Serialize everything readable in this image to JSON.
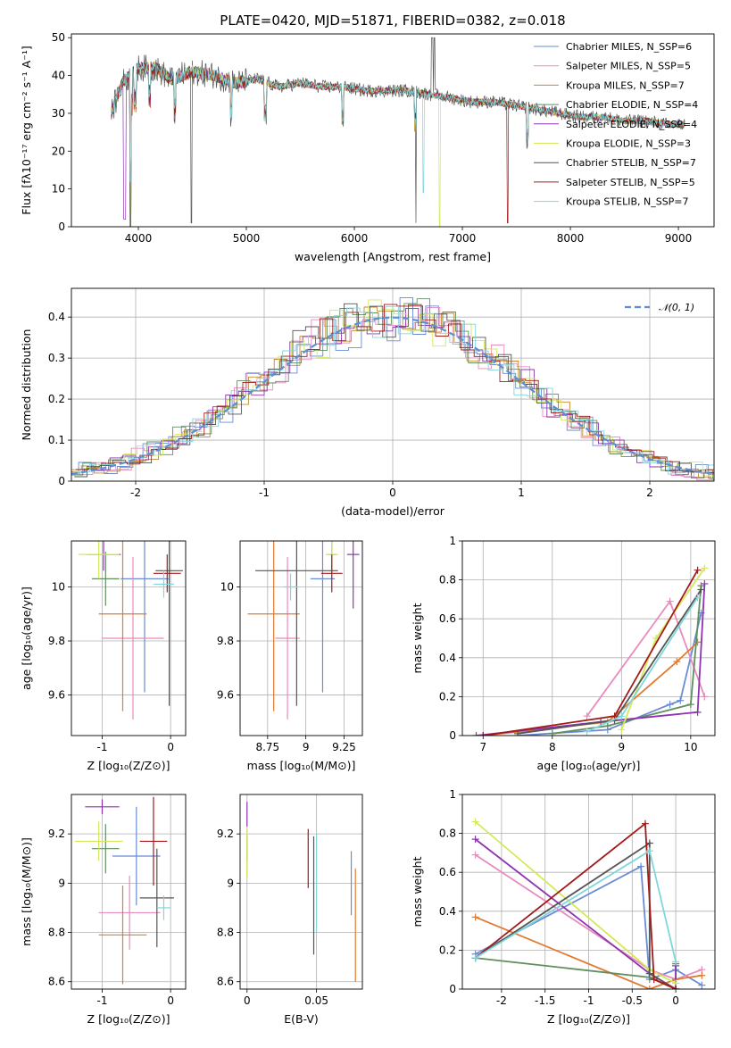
{
  "figure": {
    "title": "PLATE=0420, MJD=51871, FIBERID=0382, z=0.018"
  },
  "chart_data": [
    {
      "id": "spectrum",
      "type": "line",
      "xlabel": "wavelength [Angstrom, rest frame]",
      "ylabel": "Flux [fλ10⁻¹⁷ erg cm⁻² s⁻¹ A⁻¹]",
      "xlim": [
        3380,
        9330
      ],
      "ylim": [
        0,
        51
      ],
      "xticks": [
        4000,
        5000,
        6000,
        7000,
        8000,
        9000
      ],
      "yticks": [
        0,
        10,
        20,
        30,
        40,
        50
      ],
      "legend_position": "top-right",
      "x": [
        3750,
        3850,
        4000,
        4150,
        4300,
        4500,
        4700,
        4900,
        5100,
        5300,
        5500,
        5700,
        5900,
        6100,
        6300,
        6500,
        6700,
        6900,
        7100,
        7300,
        7500,
        7700,
        7900,
        8100,
        8300,
        8500,
        8700,
        8900,
        9060
      ],
      "series_shared_y": [
        30,
        38,
        42,
        42,
        39,
        41,
        40,
        38,
        39,
        37,
        38,
        37,
        37,
        36,
        36,
        36,
        35,
        34,
        33,
        33,
        32,
        31,
        30,
        29,
        29,
        28,
        28,
        27,
        27
      ],
      "series": [
        {
          "name": "Chabrier MILES, N_SSP=6",
          "color": "#6a8bd6"
        },
        {
          "name": "Salpeter MILES, N_SSP=5",
          "color": "#e88bbd"
        },
        {
          "name": "Kroupa MILES, N_SSP=7",
          "color": "#c8862a"
        },
        {
          "name": "Chabrier ELODIE, N_SSP=4",
          "color": "#5f8f5f"
        },
        {
          "name": "Salpeter ELODIE, N_SSP=4",
          "color": "#8e33b0"
        },
        {
          "name": "Kroupa ELODIE, N_SSP=3",
          "color": "#d4e85a"
        },
        {
          "name": "Chabrier STELIB, N_SSP=7",
          "color": "#555555"
        },
        {
          "name": "Salpeter STELIB, N_SSP=5",
          "color": "#a31a1a"
        },
        {
          "name": "Kroupa STELIB, N_SSP=7",
          "color": "#7fd6dc"
        }
      ]
    },
    {
      "id": "residuals",
      "type": "line",
      "xlabel": "(data-model)/error",
      "ylabel": "Normed distribution",
      "xlim": [
        -2.5,
        2.5
      ],
      "ylim": [
        0,
        0.47
      ],
      "xticks": [
        -2,
        -1,
        0,
        1,
        2
      ],
      "yticks": [
        0.0,
        0.1,
        0.2,
        0.3,
        0.4
      ],
      "grid": true,
      "legend": "𝒩(0, 1)",
      "legend_position": "top-right",
      "bin_width": 0.1,
      "gaussian_color": "#5b8fd6"
    },
    {
      "id": "age_vs_Z",
      "type": "scatter",
      "xlabel": "Z [log₁₀(Z/Z⊙)]",
      "ylabel": "age  [log₁₀(age/yr)]",
      "xlim": [
        -1.45,
        0.22
      ],
      "ylim": [
        9.45,
        10.17
      ],
      "xticks": [
        -1,
        0
      ],
      "yticks": [
        9.6,
        9.8,
        10.0
      ],
      "grid": true,
      "points": [
        {
          "x": -0.38,
          "y": 10.03,
          "xerr": 0.35,
          "yerr": 0.42,
          "color": "#6a8bd6"
        },
        {
          "x": -0.55,
          "y": 9.81,
          "xerr": 0.45,
          "yerr": 0.3,
          "color": "#e88bbd"
        },
        {
          "x": -0.7,
          "y": 9.9,
          "xerr": 0.35,
          "yerr": 0.36,
          "color": "#e07b30"
        },
        {
          "x": -0.95,
          "y": 10.03,
          "xerr": 0.2,
          "yerr": 0.1,
          "color": "#5f8f5f"
        },
        {
          "x": -0.98,
          "y": 10.12,
          "xerr": 0.25,
          "yerr": 0.06,
          "color": "#8e33b0"
        },
        {
          "x": -1.05,
          "y": 10.12,
          "xerr": 0.3,
          "yerr": 0.09,
          "color": "#d4e85a"
        },
        {
          "x": -0.02,
          "y": 10.06,
          "xerr": 0.2,
          "yerr": 0.5,
          "color": "#555555"
        },
        {
          "x": -0.05,
          "y": 10.05,
          "xerr": 0.2,
          "yerr": 0.07,
          "color": "#a31a1a"
        },
        {
          "x": -0.1,
          "y": 10.01,
          "xerr": 0.15,
          "yerr": 0.05,
          "color": "#7fd6dc"
        }
      ]
    },
    {
      "id": "age_vs_mass",
      "type": "scatter",
      "xlabel": "mass [log₁₀(M/M⊙)]",
      "ylabel": "",
      "xlim": [
        8.57,
        9.37
      ],
      "ylim": [
        9.45,
        10.17
      ],
      "xticks": [
        8.75,
        9.0,
        9.25
      ],
      "yticks": [
        9.6,
        9.8,
        10.0
      ],
      "grid": true,
      "points": [
        {
          "x": 9.11,
          "y": 10.03,
          "xerr": 0.08,
          "yerr": 0.42,
          "color": "#6a8bd6"
        },
        {
          "x": 8.88,
          "y": 9.81,
          "xerr": 0.08,
          "yerr": 0.3,
          "color": "#e88bbd"
        },
        {
          "x": 8.79,
          "y": 9.9,
          "xerr": 0.17,
          "yerr": 0.36,
          "color": "#e07b30"
        },
        {
          "x": 9.17,
          "y": 10.12,
          "xerr": 0.03,
          "yerr": 0.06,
          "color": "#5f8f5f"
        },
        {
          "x": 9.31,
          "y": 10.12,
          "xerr": 0.04,
          "yerr": 0.2,
          "color": "#8e33b0"
        },
        {
          "x": 9.17,
          "y": 10.12,
          "xerr": 0.04,
          "yerr": 0.09,
          "color": "#d4e85a"
        },
        {
          "x": 8.94,
          "y": 10.06,
          "xerr": 0.27,
          "yerr": 0.5,
          "color": "#555555"
        },
        {
          "x": 9.17,
          "y": 10.05,
          "xerr": 0.07,
          "yerr": 0.07,
          "color": "#a31a1a"
        },
        {
          "x": 8.9,
          "y": 10.0,
          "xerr": 0.05,
          "yerr": 0.05,
          "color": "#7fd6dc"
        }
      ]
    },
    {
      "id": "weight_vs_age",
      "type": "line",
      "xlabel": "age  [log₁₀(age/yr)]",
      "ylabel": "mass weight",
      "xlim": [
        6.7,
        10.35
      ],
      "ylim": [
        0,
        1
      ],
      "xticks": [
        7,
        8,
        9,
        10
      ],
      "yticks": [
        0.0,
        0.2,
        0.4,
        0.6,
        0.8,
        1.0
      ],
      "grid": true,
      "series": [
        {
          "color": "#6a8bd6",
          "points": [
            [
              7.5,
              0.0
            ],
            [
              8.8,
              0.03
            ],
            [
              9.7,
              0.16
            ],
            [
              9.85,
              0.18
            ],
            [
              10.15,
              0.63
            ]
          ]
        },
        {
          "color": "#e88bbd",
          "points": [
            [
              8.5,
              0.1
            ],
            [
              9.7,
              0.69
            ],
            [
              10.2,
              0.2
            ]
          ]
        },
        {
          "color": "#e07b30",
          "points": [
            [
              7.0,
              0.0
            ],
            [
              8.8,
              0.07
            ],
            [
              9.8,
              0.38
            ],
            [
              10.1,
              0.48
            ]
          ]
        },
        {
          "color": "#5f8f5f",
          "points": [
            [
              8.0,
              0.01
            ],
            [
              8.8,
              0.05
            ],
            [
              10.0,
              0.16
            ],
            [
              10.15,
              0.77
            ]
          ]
        },
        {
          "color": "#8e33b0",
          "points": [
            [
              6.9,
              0.0
            ],
            [
              8.7,
              0.07
            ],
            [
              10.1,
              0.12
            ],
            [
              10.2,
              0.78
            ]
          ]
        },
        {
          "color": "#d4e85a",
          "points": [
            [
              9.0,
              0.03
            ],
            [
              9.5,
              0.5
            ],
            [
              10.2,
              0.86
            ]
          ]
        },
        {
          "color": "#555555",
          "points": [
            [
              7.5,
              0.01
            ],
            [
              8.9,
              0.08
            ],
            [
              10.15,
              0.75
            ]
          ]
        },
        {
          "color": "#a31a1a",
          "points": [
            [
              7.0,
              0.0
            ],
            [
              8.9,
              0.1
            ],
            [
              10.1,
              0.85
            ]
          ]
        },
        {
          "color": "#7fd6dc",
          "points": [
            [
              8.5,
              0.02
            ],
            [
              9.0,
              0.1
            ],
            [
              10.1,
              0.71
            ]
          ]
        }
      ]
    },
    {
      "id": "mass_vs_Z",
      "type": "scatter",
      "xlabel": "Z [log₁₀(Z/Z⊙)]",
      "ylabel": "mass [log₁₀(M/M⊙)]",
      "xlim": [
        -1.45,
        0.22
      ],
      "ylim": [
        8.57,
        9.36
      ],
      "xticks": [
        -1,
        0
      ],
      "yticks": [
        8.6,
        8.8,
        9.0,
        9.2
      ],
      "grid": true,
      "points": [
        {
          "x": -0.5,
          "y": 9.11,
          "xerr": 0.35,
          "yerr": 0.2,
          "color": "#6a8bd6"
        },
        {
          "x": -0.6,
          "y": 8.88,
          "xerr": 0.45,
          "yerr": 0.15,
          "color": "#e88bbd"
        },
        {
          "x": -0.7,
          "y": 8.79,
          "xerr": 0.35,
          "yerr": 0.2,
          "color": "#e07b30"
        },
        {
          "x": -0.95,
          "y": 9.14,
          "xerr": 0.2,
          "yerr": 0.1,
          "color": "#5f8f5f"
        },
        {
          "x": -1.0,
          "y": 9.31,
          "xerr": 0.25,
          "yerr": 0.03,
          "color": "#8e33b0"
        },
        {
          "x": -1.05,
          "y": 9.17,
          "xerr": 0.35,
          "yerr": 0.08,
          "color": "#d4e85a"
        },
        {
          "x": -0.2,
          "y": 8.94,
          "xerr": 0.25,
          "yerr": 0.2,
          "color": "#555555"
        },
        {
          "x": -0.25,
          "y": 9.17,
          "xerr": 0.2,
          "yerr": 0.18,
          "color": "#a31a1a"
        },
        {
          "x": -0.1,
          "y": 8.9,
          "xerr": 0.1,
          "yerr": 0.05,
          "color": "#7fd6dc"
        }
      ]
    },
    {
      "id": "mass_vs_ebv",
      "type": "scatter",
      "xlabel": "E(B-V)",
      "ylabel": "",
      "xlim": [
        -0.005,
        0.083
      ],
      "ylim": [
        8.57,
        9.36
      ],
      "xticks": [
        0.0,
        0.05
      ],
      "yticks": [
        8.6,
        8.8,
        9.0,
        9.2
      ],
      "grid": true,
      "points": [
        {
          "x": 0.075,
          "y": 9.0,
          "xerr": 0,
          "yerr": 0.13,
          "color": "#6a8bd6"
        },
        {
          "x": 0.0,
          "y": 9.12,
          "xerr": 0,
          "yerr": 0.1,
          "color": "#e88bbd"
        },
        {
          "x": 0.078,
          "y": 8.83,
          "xerr": 0,
          "yerr": 0.23,
          "color": "#e07b30"
        },
        {
          "x": 0.0,
          "y": 9.14,
          "xerr": 0,
          "yerr": 0.05,
          "color": "#5f8f5f"
        },
        {
          "x": 0.0,
          "y": 9.28,
          "xerr": 0,
          "yerr": 0.05,
          "color": "#8e33b0"
        },
        {
          "x": 0.0,
          "y": 9.12,
          "xerr": 0,
          "yerr": 0.1,
          "color": "#d4e85a"
        },
        {
          "x": 0.048,
          "y": 8.95,
          "xerr": 0,
          "yerr": 0.24,
          "color": "#555555"
        },
        {
          "x": 0.044,
          "y": 9.1,
          "xerr": 0,
          "yerr": 0.12,
          "color": "#a31a1a"
        },
        {
          "x": 0.05,
          "y": 9.0,
          "xerr": 0,
          "yerr": 0.2,
          "color": "#7fd6dc"
        }
      ]
    },
    {
      "id": "weight_vs_Z",
      "type": "line",
      "xlabel": "Z [log₁₀(Z/Z⊙)]",
      "ylabel": "mass weight",
      "xlim": [
        -2.45,
        0.45
      ],
      "ylim": [
        0,
        1
      ],
      "xticks": [
        -2.0,
        -1.5,
        -1.0,
        -0.5,
        0.0
      ],
      "yticks": [
        0.0,
        0.2,
        0.4,
        0.6,
        0.8,
        1.0
      ],
      "grid": true,
      "series": [
        {
          "color": "#6a8bd6",
          "points": [
            [
              -2.3,
              0.18
            ],
            [
              -0.4,
              0.63
            ],
            [
              -0.3,
              0.05
            ],
            [
              0.0,
              0.1
            ],
            [
              0.3,
              0.02
            ]
          ]
        },
        {
          "color": "#e88bbd",
          "points": [
            [
              -2.3,
              0.69
            ],
            [
              -0.3,
              0.1
            ],
            [
              0.0,
              0.05
            ],
            [
              0.3,
              0.1
            ]
          ]
        },
        {
          "color": "#e07b30",
          "points": [
            [
              -2.3,
              0.37
            ],
            [
              -0.3,
              0.0
            ],
            [
              0.0,
              0.05
            ],
            [
              0.3,
              0.07
            ]
          ]
        },
        {
          "color": "#5f8f5f",
          "points": [
            [
              -2.3,
              0.16
            ],
            [
              -0.3,
              0.06
            ],
            [
              0.0,
              0.0
            ],
            [
              0.0,
              0.13
            ]
          ]
        },
        {
          "color": "#8e33b0",
          "points": [
            [
              -2.3,
              0.77
            ],
            [
              -0.3,
              0.08
            ],
            [
              0.0,
              0.0
            ],
            [
              0.0,
              0.12
            ]
          ]
        },
        {
          "color": "#d4e85a",
          "points": [
            [
              -2.3,
              0.86
            ],
            [
              -0.3,
              0.1
            ],
            [
              0.0,
              0.03
            ]
          ]
        },
        {
          "color": "#555555",
          "points": [
            [
              -2.3,
              0.16
            ],
            [
              -0.3,
              0.75
            ],
            [
              -0.3,
              0.08
            ],
            [
              0.0,
              0.0
            ]
          ]
        },
        {
          "color": "#a31a1a",
          "points": [
            [
              -2.3,
              0.16
            ],
            [
              -0.35,
              0.85
            ],
            [
              -0.25,
              0.05
            ],
            [
              0.0,
              0.0
            ]
          ]
        },
        {
          "color": "#7fd6dc",
          "points": [
            [
              -2.3,
              0.16
            ],
            [
              -0.3,
              0.71
            ],
            [
              0.0,
              0.14
            ]
          ]
        }
      ]
    }
  ]
}
